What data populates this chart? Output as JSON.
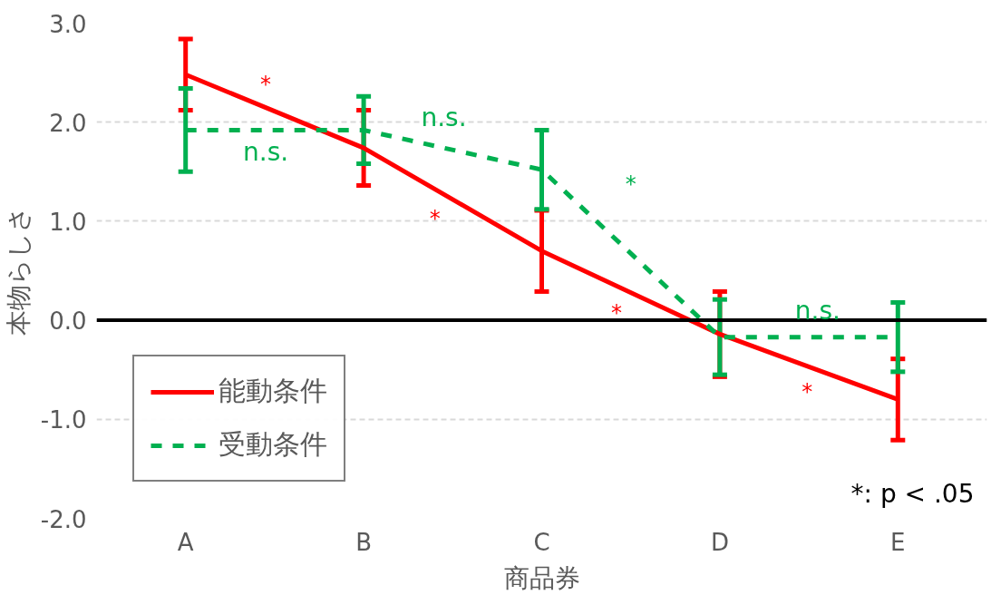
{
  "chart_data": {
    "type": "line",
    "xlabel": "商品券",
    "ylabel": "本物らしさ",
    "categories": [
      "A",
      "B",
      "C",
      "D",
      "E"
    ],
    "series": [
      {
        "name": "能動条件",
        "color": "#ff0000",
        "line_style": "solid",
        "values": [
          2.48,
          1.74,
          0.7,
          -0.14,
          -0.8
        ],
        "errors": [
          0.36,
          0.38,
          0.41,
          0.43,
          0.41
        ]
      },
      {
        "name": "受動条件",
        "color": "#00b050",
        "line_style": "dashed",
        "values": [
          1.92,
          1.92,
          1.52,
          -0.17,
          -0.17
        ],
        "errors": [
          0.42,
          0.34,
          0.4,
          0.38,
          0.35
        ]
      }
    ],
    "ylim": [
      -2.0,
      3.0
    ],
    "yticks": [
      {
        "value": -2,
        "label": "-2.0"
      },
      {
        "value": -1,
        "label": "-1.0"
      },
      {
        "value": 0,
        "label": "0.0"
      },
      {
        "value": 1,
        "label": "1.0"
      },
      {
        "value": 2,
        "label": "2.0"
      },
      {
        "value": 3,
        "label": "3.0"
      }
    ],
    "grid": "y",
    "legend": "bottom left",
    "marker": "none",
    "ref_lines": [
      {
        "axis": "y",
        "value": 0,
        "color": "#000000"
      }
    ],
    "annotations": [
      "*",
      "n.s.",
      "*",
      "n.s.",
      "*",
      "*",
      "*",
      "n.s.",
      "*: p < .05"
    ]
  }
}
